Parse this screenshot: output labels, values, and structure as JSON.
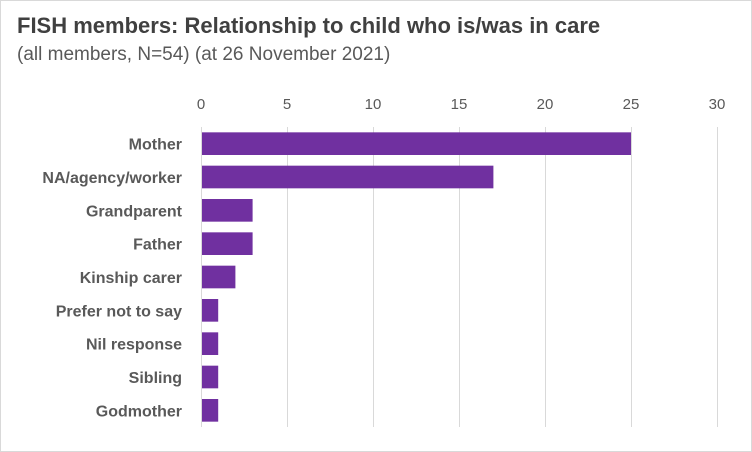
{
  "chart_data": {
    "type": "bar",
    "orientation": "horizontal",
    "title": "FISH members: Relationship to child who is/was in care",
    "subtitle": "(all members, N=54) (at 26 November 2021)",
    "categories": [
      "Mother",
      "NA/agency/worker",
      "Grandparent",
      "Father",
      "Kinship carer",
      "Prefer not to say",
      "Nil response",
      "Sibling",
      "Godmother"
    ],
    "values": [
      25,
      17,
      3,
      3,
      2,
      1,
      1,
      1,
      1
    ],
    "xlim": [
      0,
      30
    ],
    "xticks": [
      0,
      5,
      10,
      15,
      20,
      25,
      30
    ],
    "xaxis_position": "top",
    "grid": true,
    "bar_color": "#7030a0",
    "xlabel": "",
    "ylabel": ""
  }
}
